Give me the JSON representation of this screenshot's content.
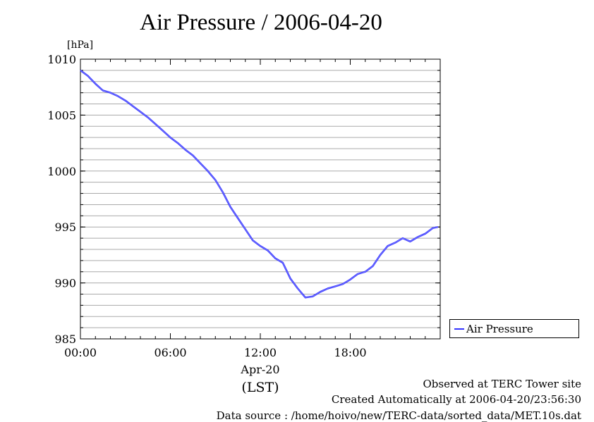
{
  "chart_data": {
    "type": "line",
    "title": "Air Pressure / 2006-04-20",
    "ylabel": "[hPa]",
    "xlabel_line1": "Apr-20",
    "xlabel_line2": "(LST)",
    "xlim": [
      0,
      24
    ],
    "ylim": [
      985,
      1010
    ],
    "x_ticks": [
      "00:00",
      "06:00",
      "12:00",
      "18:00"
    ],
    "y_ticks": [
      "1010",
      "1005",
      "1000",
      "995",
      "990",
      "985"
    ],
    "grid": "horizontal",
    "legend_position": "right",
    "series": [
      {
        "name": "Air Pressure",
        "color": "#3333ff",
        "x_hours": [
          0.0,
          0.5,
          1.0,
          1.5,
          2.0,
          2.5,
          3.0,
          3.5,
          4.0,
          4.5,
          5.0,
          5.5,
          6.0,
          6.5,
          7.0,
          7.5,
          8.0,
          8.5,
          9.0,
          9.5,
          10.0,
          10.5,
          11.0,
          11.5,
          12.0,
          12.5,
          13.0,
          13.5,
          14.0,
          14.5,
          15.0,
          15.5,
          16.0,
          16.5,
          17.0,
          17.5,
          18.0,
          18.5,
          19.0,
          19.5,
          20.0,
          20.5,
          21.0,
          21.5,
          22.0,
          22.5,
          23.0,
          23.5,
          23.85
        ],
        "y": [
          1009.0,
          1008.5,
          1007.8,
          1007.2,
          1007.0,
          1006.7,
          1006.3,
          1005.8,
          1005.3,
          1004.8,
          1004.2,
          1003.6,
          1003.0,
          1002.5,
          1001.9,
          1001.4,
          1000.7,
          1000.0,
          999.2,
          998.1,
          996.8,
          995.8,
          994.8,
          993.8,
          993.3,
          992.9,
          992.2,
          991.8,
          990.4,
          989.5,
          988.7,
          988.8,
          989.2,
          989.5,
          989.7,
          989.9,
          990.3,
          990.8,
          991.0,
          991.5,
          992.5,
          993.3,
          993.6,
          994.0,
          993.7,
          994.1,
          994.4,
          994.9,
          995.0
        ]
      }
    ]
  },
  "legend": {
    "label": "Air Pressure"
  },
  "footer": {
    "observed": "Observed at TERC Tower site",
    "created": "Created Automatically at 2006-04-20/23:56:30",
    "source": "Data source : /home/hoivo/new/TERC-data/sorted_data/MET.10s.dat"
  }
}
